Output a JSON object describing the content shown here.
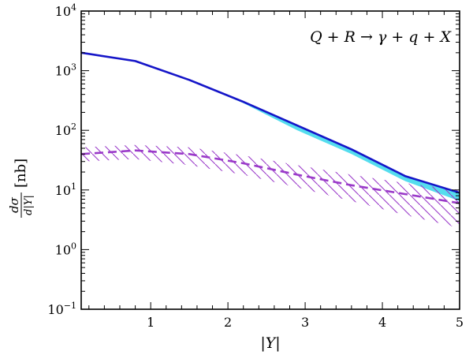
{
  "chart_data": {
    "type": "line",
    "title": "",
    "annotation": "Q + R → γ + q + X",
    "xlabel": "|Y|",
    "ylabel_num": "dσ",
    "ylabel_den": "d|Y|",
    "ylabel_unit": "[nb]",
    "xlim": [
      0.1,
      5.0
    ],
    "ylim": [
      0.1,
      10000
    ],
    "yscale": "log",
    "x_ticks": [
      1,
      2,
      3,
      4,
      5
    ],
    "x_tick_labels": [
      "1",
      "2",
      "3",
      "4",
      "5"
    ],
    "y_ticks": [
      0.1,
      1,
      10,
      100,
      1000,
      10000
    ],
    "y_tick_labels": [
      {
        "base": "10",
        "exp": "−1"
      },
      {
        "base": "10",
        "exp": "0"
      },
      {
        "base": "10",
        "exp": "1"
      },
      {
        "base": "10",
        "exp": "2"
      },
      {
        "base": "10",
        "exp": "3"
      },
      {
        "base": "10",
        "exp": "4"
      }
    ],
    "grid": false,
    "series": [
      {
        "style": "solid",
        "color": "#1515c8",
        "band_color": "#55ddee",
        "x": [
          0.1,
          0.8,
          1.5,
          2.2,
          2.9,
          3.6,
          4.3,
          5.0
        ],
        "values": [
          2000,
          1450,
          700,
          300,
          120,
          48,
          17,
          9
        ],
        "band_lower": [
          2000,
          1450,
          700,
          285,
          100,
          40,
          14,
          6.5
        ],
        "band_upper": [
          2000,
          1450,
          700,
          300,
          120,
          48,
          17,
          9
        ]
      },
      {
        "style": "dashed",
        "color": "#9a3ac9",
        "band_style": "hatched",
        "x": [
          0.1,
          0.8,
          1.5,
          2.2,
          2.9,
          3.6,
          4.3,
          5.0
        ],
        "values": [
          40,
          46,
          40,
          28,
          18,
          12,
          8.5,
          6
        ],
        "band_lower": [
          30,
          33,
          26,
          18,
          11,
          6.5,
          3.8,
          2.3
        ],
        "band_upper": [
          52,
          57,
          52,
          38,
          26,
          18,
          13,
          10
        ]
      }
    ]
  }
}
